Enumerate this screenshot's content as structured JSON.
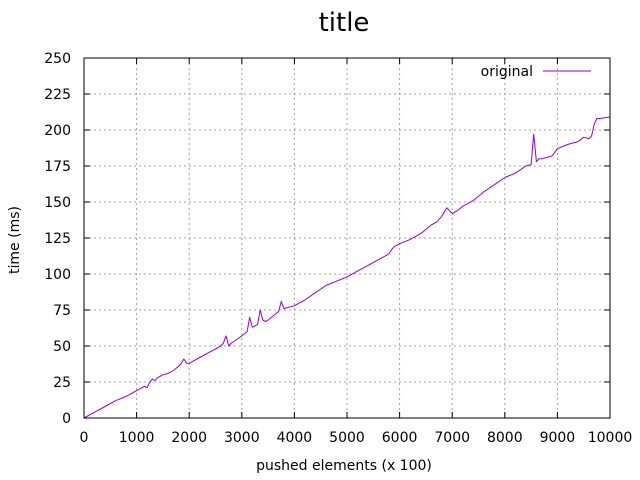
{
  "chart_data": {
    "type": "line",
    "title": "title",
    "xlabel": "pushed elements (x 100)",
    "ylabel": "time (ms)",
    "xlim": [
      0,
      10000
    ],
    "ylim": [
      0,
      250
    ],
    "xticks": [
      0,
      1000,
      2000,
      3000,
      4000,
      5000,
      6000,
      7000,
      8000,
      9000,
      10000
    ],
    "yticks": [
      0,
      25,
      50,
      75,
      100,
      125,
      150,
      175,
      200,
      225,
      250
    ],
    "grid": true,
    "legend_position": "top-right",
    "series": [
      {
        "name": "original",
        "color": "#9400d3",
        "x": [
          0,
          200,
          400,
          600,
          800,
          1000,
          1150,
          1200,
          1250,
          1300,
          1350,
          1400,
          1500,
          1600,
          1700,
          1800,
          1850,
          1900,
          1950,
          2000,
          2200,
          2400,
          2600,
          2650,
          2700,
          2750,
          2800,
          3000,
          3100,
          3150,
          3200,
          3300,
          3350,
          3400,
          3450,
          3500,
          3700,
          3750,
          3800,
          4000,
          4200,
          4400,
          4600,
          4800,
          5000,
          5200,
          5400,
          5600,
          5800,
          5850,
          5900,
          6000,
          6200,
          6400,
          6600,
          6700,
          6800,
          6900,
          7000,
          7100,
          7200,
          7400,
          7600,
          7800,
          8000,
          8200,
          8400,
          8500,
          8550,
          8600,
          8650,
          8700,
          8900,
          9000,
          9200,
          9400,
          9500,
          9600,
          9650,
          9700,
          9750,
          9800,
          10000
        ],
        "y": [
          0,
          4,
          8,
          12,
          15,
          19,
          22,
          21,
          25,
          27,
          26,
          28,
          30,
          31,
          33,
          36,
          38,
          41,
          38,
          38,
          42,
          46,
          50,
          52,
          57,
          50,
          52,
          57,
          60,
          70,
          63,
          65,
          75,
          68,
          67,
          68,
          74,
          81,
          76,
          78,
          82,
          87,
          92,
          95,
          98,
          102,
          106,
          110,
          114,
          117,
          119,
          121,
          124,
          128,
          134,
          136,
          140,
          146,
          142,
          144,
          147,
          151,
          157,
          162,
          167,
          170,
          175,
          176,
          197,
          178,
          180,
          180,
          182,
          187,
          190,
          192,
          195,
          194,
          196,
          204,
          208,
          208,
          209
        ]
      }
    ]
  }
}
